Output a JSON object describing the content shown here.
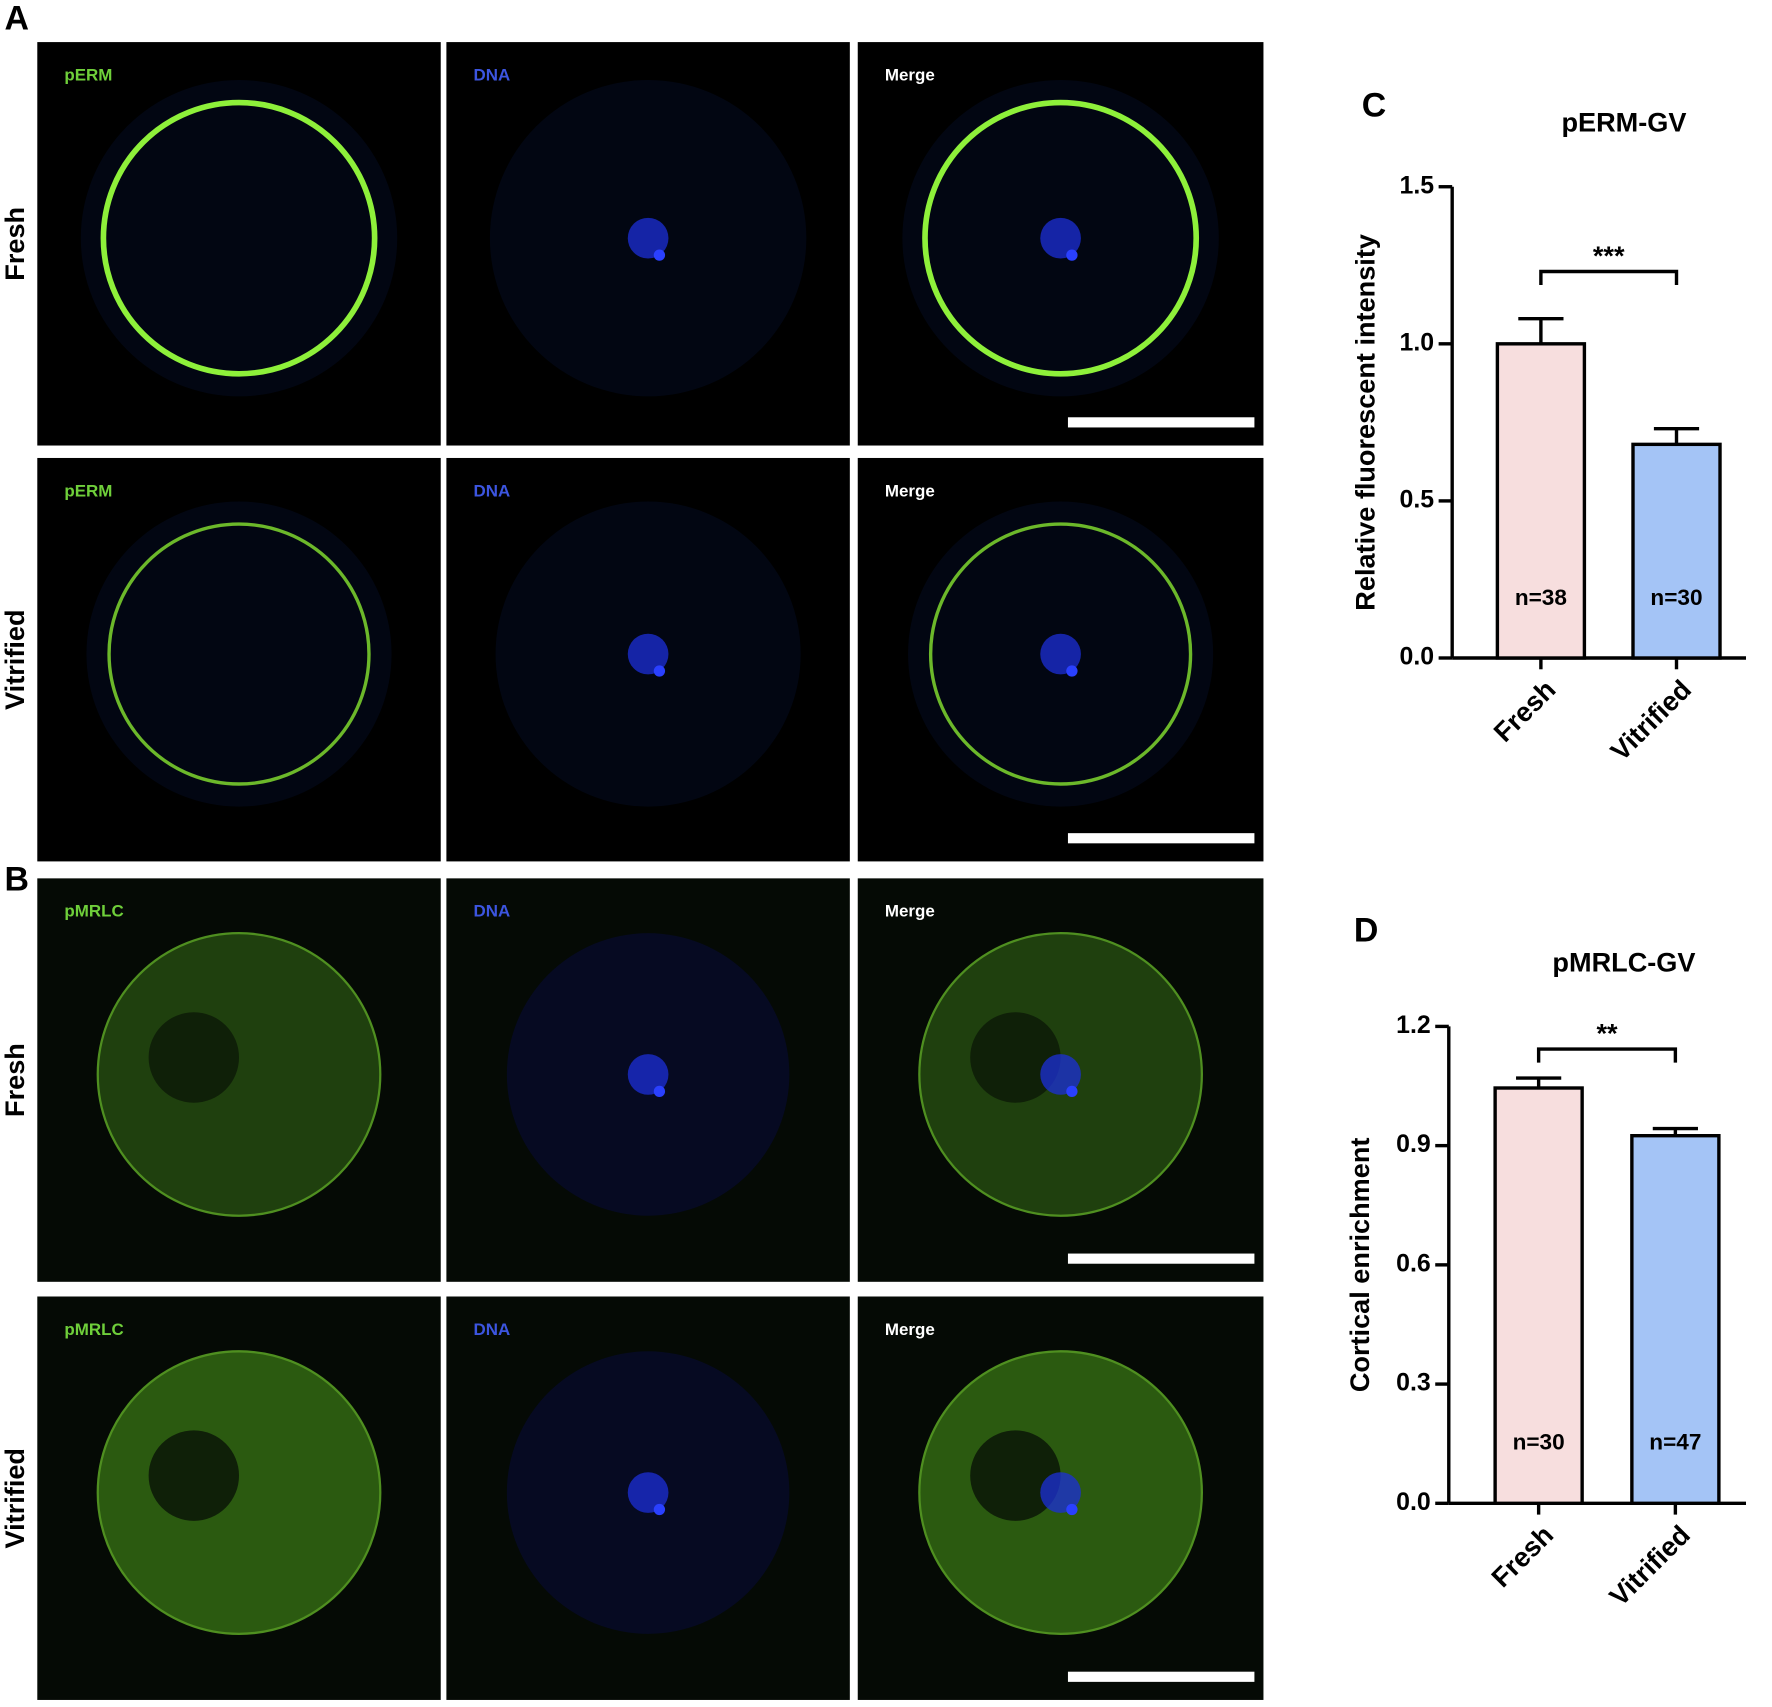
{
  "panels": [
    {
      "letter": "A",
      "rows": [
        {
          "label": "Fresh",
          "channels": [
            "pERM",
            "DNA",
            "Merge"
          ]
        },
        {
          "label": "Vitrified",
          "channels": [
            "pERM",
            "DNA",
            "Merge"
          ]
        }
      ]
    },
    {
      "letter": "B",
      "rows": [
        {
          "label": "Fresh",
          "channels": [
            "pMRLC",
            "DNA",
            "Merge"
          ]
        },
        {
          "label": "Vitrified",
          "channels": [
            "pMRLC",
            "DNA",
            "Merge"
          ]
        }
      ]
    }
  ],
  "chart_data": [
    {
      "type": "bar",
      "panel": "C",
      "title": "pERM-GV",
      "y_label": "Relative fluorescent intensity",
      "categories": [
        "Fresh",
        "Vitrified"
      ],
      "values": [
        1.0,
        0.68
      ],
      "errors": [
        0.08,
        0.05
      ],
      "colors": [
        "#f7dede",
        "#a4c4f6"
      ],
      "sample_sizes": [
        "n=38",
        "n=30"
      ],
      "significance": "***",
      "ylim": [
        0,
        1.5
      ],
      "yticks": [
        {
          "value": 0,
          "label": "0.0"
        },
        0.5,
        {
          "value": 1,
          "label": "1.0"
        },
        1.5
      ]
    },
    {
      "type": "bar",
      "panel": "D",
      "title": "pMRLC-GV",
      "y_label": "Cortical enrichment",
      "categories": [
        "Fresh",
        "Vitrified"
      ],
      "values": [
        1.045,
        0.925
      ],
      "errors": [
        0.025,
        0.018
      ],
      "colors": [
        "#f7dede",
        "#a4c4f6"
      ],
      "sample_sizes": [
        "n=30",
        "n=47"
      ],
      "significance": "**",
      "ylim": [
        0,
        1.2
      ],
      "yticks": [
        {
          "value": 0,
          "label": "0.0"
        },
        0.3,
        0.6,
        0.9,
        1.2
      ]
    }
  ]
}
